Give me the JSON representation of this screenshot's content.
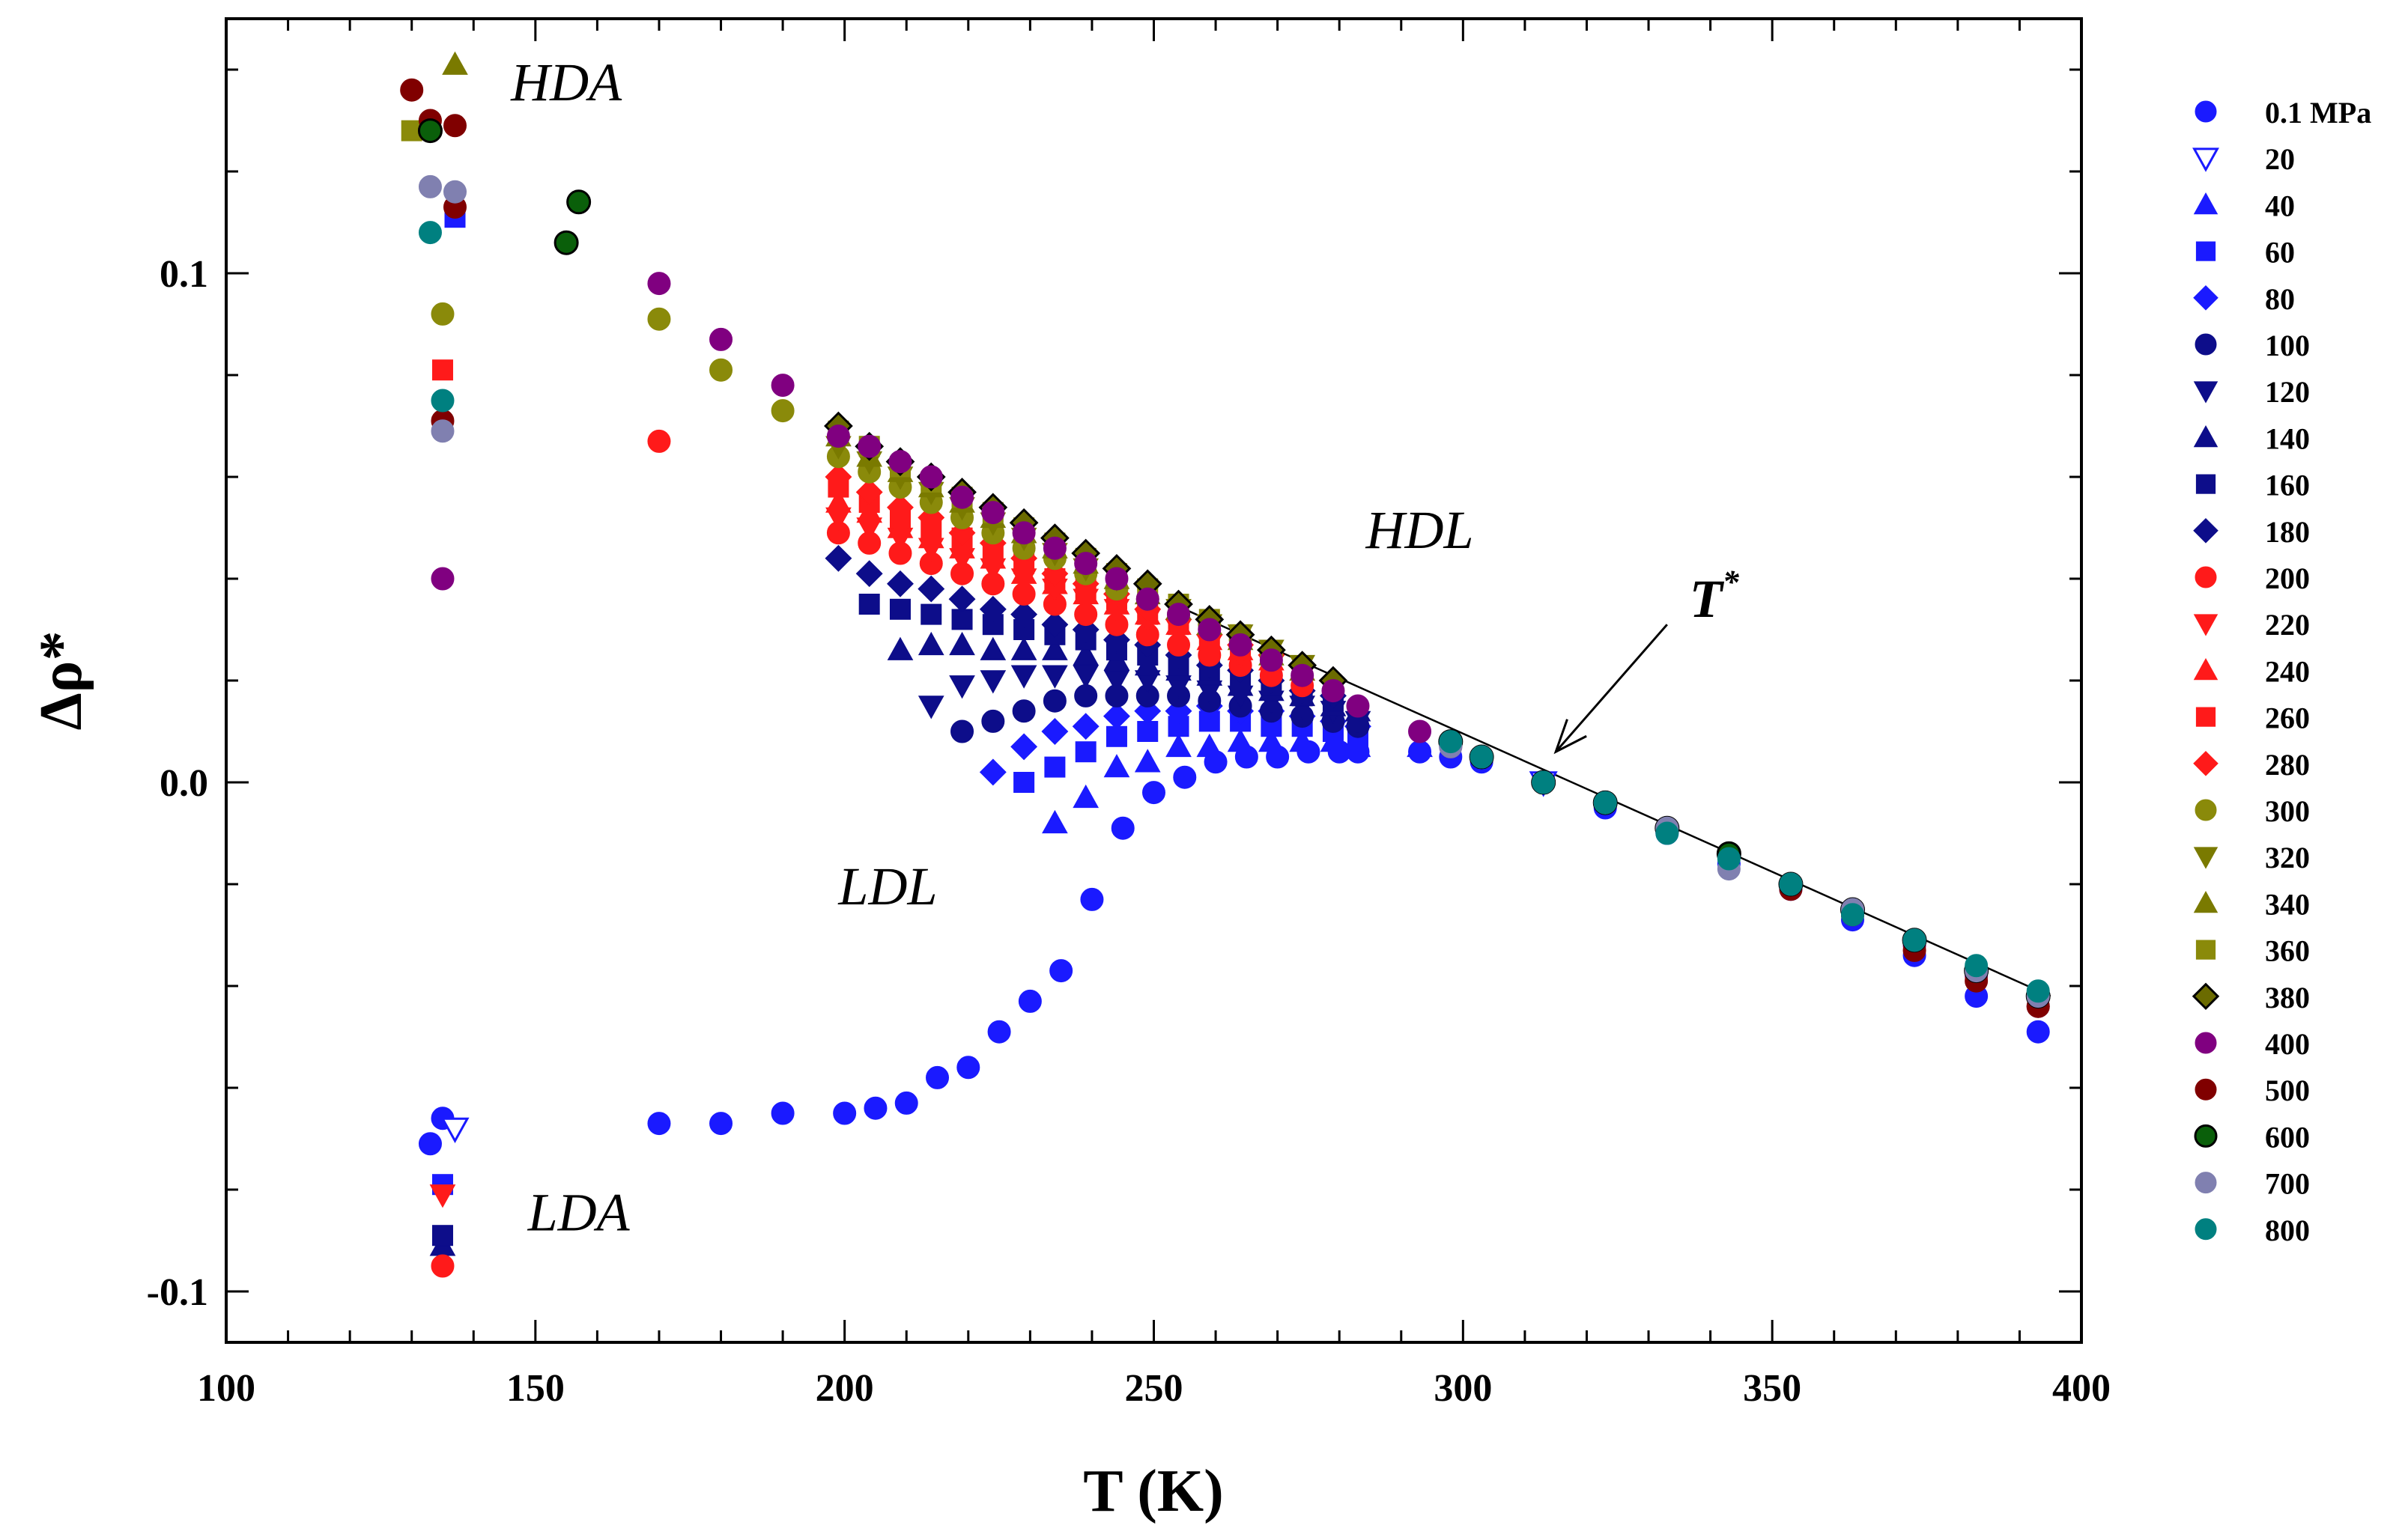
{
  "chart_data": {
    "type": "scatter",
    "title": "",
    "xlabel": "T (K)",
    "ylabel": "Δρ*",
    "xlim": [
      100,
      400
    ],
    "ylim": [
      -0.11,
      0.15
    ],
    "xticks": [
      100,
      150,
      200,
      250,
      300,
      350,
      400
    ],
    "xtick_labels": [
      "100",
      "150",
      "200",
      "250",
      "300",
      "350",
      "400"
    ],
    "yticks": [
      -0.1,
      0.0,
      0.1
    ],
    "ytick_labels": [
      "-0.1",
      "0.0",
      "0.1"
    ],
    "legend_position": "right",
    "region_labels": [
      {
        "text": "HDA",
        "x": 155,
        "y": 0.134
      },
      {
        "text": "HDL",
        "x": 293,
        "y": 0.046
      },
      {
        "text": "LDL",
        "x": 207,
        "y": -0.024
      },
      {
        "text": "LDA",
        "x": 157,
        "y": -0.088
      }
    ],
    "tstar_annotation": {
      "text": "T",
      "superscript": "*",
      "arrow_from": [
        333,
        0.031
      ],
      "arrow_to": [
        315,
        0.006
      ]
    },
    "reference_line": {
      "from": [
        255,
        0.034
      ],
      "to": [
        395,
        -0.042
      ]
    },
    "series": [
      {
        "name": "0.1 MPa",
        "marker": "circle",
        "color": "#1a1aff",
        "fill": "filled",
        "x": [
          133,
          135,
          170,
          180,
          190,
          200,
          205,
          210,
          215,
          220,
          225,
          230,
          235,
          240,
          245,
          250,
          255,
          260,
          265,
          270,
          275,
          280,
          283,
          293,
          298,
          303,
          313,
          323,
          333,
          343,
          353,
          363,
          373,
          383,
          393
        ],
        "y": [
          -0.071,
          -0.066,
          -0.067,
          -0.067,
          -0.065,
          -0.065,
          -0.064,
          -0.063,
          -0.058,
          -0.056,
          -0.049,
          -0.043,
          -0.037,
          -0.023,
          -0.009,
          -0.002,
          0.001,
          0.004,
          0.005,
          0.005,
          0.006,
          0.006,
          0.006,
          0.006,
          0.005,
          0.004,
          0,
          -0.005,
          -0.01,
          -0.016,
          -0.021,
          -0.027,
          -0.034,
          -0.042,
          -0.049
        ]
      },
      {
        "name": "20",
        "marker": "triangle-down",
        "color": "#1a1aff",
        "fill": "open",
        "x": [
          137,
          313
        ],
        "y": [
          -0.068,
          0
        ]
      },
      {
        "name": "40",
        "marker": "triangle-up",
        "color": "#1a1aff",
        "fill": "filled",
        "x": [
          234,
          239,
          244,
          249,
          254,
          259,
          264,
          269,
          274,
          279,
          283,
          293
        ],
        "y": [
          -0.008,
          -0.003,
          0.003,
          0.004,
          0.007,
          0.007,
          0.008,
          0.008,
          0.008,
          0.008,
          0.007,
          0.007
        ]
      },
      {
        "name": "60",
        "marker": "square",
        "color": "#1a1aff",
        "fill": "filled",
        "x": [
          135,
          137,
          229,
          234,
          239,
          244,
          249,
          254,
          259,
          264,
          269,
          274,
          279,
          283
        ],
        "y": [
          -0.079,
          0.111,
          0,
          0.003,
          0.006,
          0.009,
          0.01,
          0.011,
          0.012,
          0.012,
          0.011,
          0.011,
          0.01,
          0.009
        ]
      },
      {
        "name": "80",
        "marker": "diamond",
        "color": "#1a1aff",
        "fill": "filled",
        "x": [
          224,
          229,
          234,
          239,
          244,
          249,
          254,
          259,
          264,
          269,
          274,
          279,
          283
        ],
        "y": [
          0.002,
          0.007,
          0.01,
          0.011,
          0.013,
          0.014,
          0.014,
          0.015,
          0.014,
          0.014,
          0.013,
          0.012,
          0.011
        ]
      },
      {
        "name": "100",
        "marker": "circle",
        "color": "#0d0d8a",
        "fill": "filled",
        "x": [
          219,
          224,
          229,
          234,
          239,
          244,
          249,
          254,
          259,
          264,
          269,
          274,
          279,
          283
        ],
        "y": [
          0.01,
          0.012,
          0.014,
          0.016,
          0.017,
          0.017,
          0.017,
          0.017,
          0.016,
          0.015,
          0.014,
          0.013,
          0.012,
          0.011
        ]
      },
      {
        "name": "120",
        "marker": "triangle-down",
        "color": "#0d0d8a",
        "fill": "filled",
        "x": [
          214,
          219,
          224,
          229,
          234,
          239,
          244,
          249,
          254,
          259,
          264,
          269,
          274,
          279,
          283
        ],
        "y": [
          0.015,
          0.019,
          0.02,
          0.021,
          0.021,
          0.021,
          0.02,
          0.02,
          0.019,
          0.018,
          0.017,
          0.016,
          0.015,
          0.014,
          0.012
        ]
      },
      {
        "name": "140",
        "marker": "triangle-up",
        "color": "#0d0d8a",
        "fill": "filled",
        "x": [
          135,
          209,
          214,
          219,
          224,
          229,
          234,
          239,
          244,
          249,
          254,
          259,
          264,
          269,
          274,
          279,
          283
        ],
        "y": [
          -0.091,
          0.026,
          0.027,
          0.027,
          0.026,
          0.026,
          0.026,
          0.025,
          0.024,
          0.023,
          0.022,
          0.021,
          0.019,
          0.018,
          0.017,
          0.015,
          0.014
        ]
      },
      {
        "name": "160",
        "marker": "square",
        "color": "#0d0d8a",
        "fill": "filled",
        "x": [
          135,
          204,
          209,
          214,
          219,
          224,
          229,
          234,
          239,
          244,
          249,
          254,
          259,
          264,
          269,
          274,
          279
        ],
        "y": [
          -0.089,
          0.035,
          0.034,
          0.033,
          0.032,
          0.031,
          0.03,
          0.029,
          0.028,
          0.026,
          0.025,
          0.023,
          0.022,
          0.02,
          0.019,
          0.017,
          0.016
        ]
      },
      {
        "name": "180",
        "marker": "diamond",
        "color": "#0d0d8a",
        "fill": "filled",
        "x": [
          199,
          204,
          209,
          214,
          219,
          224,
          229,
          234,
          239,
          244,
          249,
          254,
          259,
          264,
          269,
          274,
          279
        ],
        "y": [
          0.044,
          0.041,
          0.039,
          0.038,
          0.036,
          0.034,
          0.033,
          0.031,
          0.03,
          0.028,
          0.027,
          0.025,
          0.023,
          0.022,
          0.02,
          0.018,
          0.017
        ]
      },
      {
        "name": "200",
        "marker": "circle",
        "color": "#ff1a1a",
        "fill": "filled",
        "x": [
          135,
          170,
          199,
          204,
          209,
          214,
          219,
          224,
          229,
          234,
          239,
          244,
          249,
          254,
          259,
          264,
          269,
          274
        ],
        "y": [
          -0.095,
          0.067,
          0.049,
          0.047,
          0.045,
          0.043,
          0.041,
          0.039,
          0.037,
          0.035,
          0.033,
          0.031,
          0.029,
          0.027,
          0.025,
          0.023,
          0.021,
          0.019
        ]
      },
      {
        "name": "220",
        "marker": "triangle-down",
        "color": "#ff1a1a",
        "fill": "filled",
        "x": [
          135,
          199,
          204,
          209,
          214,
          219,
          224,
          229,
          234,
          239,
          244,
          249,
          254,
          259,
          264,
          269,
          274
        ],
        "y": [
          -0.081,
          0.052,
          0.05,
          0.048,
          0.046,
          0.044,
          0.042,
          0.04,
          0.038,
          0.036,
          0.034,
          0.032,
          0.03,
          0.027,
          0.025,
          0.023,
          0.021
        ]
      },
      {
        "name": "240",
        "marker": "triangle-up",
        "color": "#ff1a1a",
        "fill": "filled",
        "x": [
          199,
          204,
          209,
          214,
          219,
          224,
          229,
          234,
          239,
          244,
          249,
          254,
          259,
          264,
          269,
          274
        ],
        "y": [
          0.055,
          0.053,
          0.05,
          0.048,
          0.046,
          0.044,
          0.041,
          0.039,
          0.037,
          0.035,
          0.033,
          0.031,
          0.028,
          0.026,
          0.024,
          0.022
        ]
      },
      {
        "name": "260",
        "marker": "square",
        "color": "#ff1a1a",
        "fill": "filled",
        "x": [
          135,
          199,
          204,
          209,
          214,
          219,
          224,
          229,
          234,
          239,
          244,
          249,
          254,
          259,
          264,
          269
        ],
        "y": [
          0.081,
          0.058,
          0.055,
          0.052,
          0.05,
          0.048,
          0.045,
          0.043,
          0.04,
          0.038,
          0.036,
          0.033,
          0.031,
          0.029,
          0.026,
          0.024
        ]
      },
      {
        "name": "280",
        "marker": "diamond",
        "color": "#ff1a1a",
        "fill": "filled",
        "x": [
          199,
          204,
          209,
          214,
          219,
          224,
          229,
          234,
          239,
          244,
          249,
          254,
          259,
          264,
          269
        ],
        "y": [
          0.06,
          0.057,
          0.054,
          0.052,
          0.049,
          0.047,
          0.044,
          0.041,
          0.039,
          0.037,
          0.034,
          0.032,
          0.029,
          0.027,
          0.025
        ]
      },
      {
        "name": "300",
        "marker": "circle",
        "color": "#8a8a0a",
        "fill": "filled",
        "x": [
          135,
          170,
          180,
          190,
          199,
          204,
          209,
          214,
          219,
          224,
          229,
          234,
          239,
          244,
          249,
          254,
          259,
          264,
          269
        ],
        "y": [
          0.092,
          0.091,
          0.081,
          0.073,
          0.064,
          0.061,
          0.058,
          0.055,
          0.052,
          0.049,
          0.046,
          0.044,
          0.041,
          0.038,
          0.036,
          0.033,
          0.031,
          0.028,
          0.025
        ]
      },
      {
        "name": "320",
        "marker": "triangle-down",
        "color": "#7a7a00",
        "fill": "filled",
        "x": [
          199,
          204,
          209,
          214,
          219,
          224,
          229,
          234,
          239,
          244,
          249,
          254,
          259,
          264,
          269,
          274
        ],
        "y": [
          0.066,
          0.063,
          0.06,
          0.057,
          0.054,
          0.051,
          0.048,
          0.045,
          0.042,
          0.04,
          0.037,
          0.034,
          0.031,
          0.029,
          0.026,
          0.023
        ]
      },
      {
        "name": "340",
        "marker": "triangle-up",
        "color": "#7a7a00",
        "fill": "filled",
        "x": [
          137,
          199,
          204,
          209,
          214,
          219,
          224,
          229,
          234,
          239,
          244,
          249,
          254,
          259,
          264,
          269,
          274
        ],
        "y": [
          0.141,
          0.068,
          0.064,
          0.061,
          0.058,
          0.055,
          0.052,
          0.049,
          0.046,
          0.043,
          0.04,
          0.037,
          0.034,
          0.031,
          0.028,
          0.025,
          0.022
        ]
      },
      {
        "name": "360",
        "marker": "square",
        "color": "#8a8a0a",
        "fill": "filled",
        "x": [
          130,
          199,
          204,
          209,
          214,
          219,
          224,
          229,
          234,
          239,
          244,
          249,
          254,
          259,
          264
        ],
        "y": [
          0.128,
          0.069,
          0.066,
          0.062,
          0.059,
          0.056,
          0.053,
          0.05,
          0.047,
          0.044,
          0.041,
          0.038,
          0.035,
          0.032,
          0.029
        ]
      },
      {
        "name": "380",
        "marker": "diamond",
        "color": "#6b6b00",
        "fill": "filled-outlined",
        "x": [
          199,
          204,
          209,
          214,
          219,
          224,
          229,
          234,
          239,
          244,
          249,
          254,
          259,
          264,
          269,
          274,
          279
        ],
        "y": [
          0.07,
          0.066,
          0.063,
          0.06,
          0.057,
          0.054,
          0.051,
          0.048,
          0.045,
          0.042,
          0.039,
          0.035,
          0.032,
          0.029,
          0.026,
          0.023,
          0.02
        ]
      },
      {
        "name": "400",
        "marker": "circle",
        "color": "#800080",
        "fill": "filled",
        "x": [
          135,
          170,
          180,
          190,
          199,
          204,
          209,
          214,
          219,
          224,
          229,
          234,
          239,
          244,
          249,
          254,
          259,
          264,
          269,
          274,
          279,
          283,
          293,
          298,
          303,
          313,
          323,
          333,
          343,
          353,
          363,
          373,
          383,
          393
        ],
        "y": [
          0.04,
          0.098,
          0.087,
          0.078,
          0.068,
          0.066,
          0.063,
          0.06,
          0.056,
          0.053,
          0.049,
          0.046,
          0.043,
          0.04,
          0.036,
          0.033,
          0.03,
          0.027,
          0.024,
          0.021,
          0.018,
          0.015,
          0.01,
          0.007,
          0.005,
          0,
          -0.004,
          -0.009,
          -0.014,
          -0.02,
          -0.026,
          -0.032,
          -0.038,
          -0.044
        ]
      },
      {
        "name": "500",
        "marker": "circle",
        "color": "#800000",
        "fill": "filled",
        "x": [
          130,
          133,
          135,
          137,
          137,
          313,
          323,
          333,
          343,
          353,
          363,
          373,
          383,
          393
        ],
        "y": [
          0.136,
          0.13,
          0.071,
          0.129,
          0.113,
          0,
          -0.004,
          -0.009,
          -0.014,
          -0.021,
          -0.026,
          -0.033,
          -0.039,
          -0.044
        ]
      },
      {
        "name": "600",
        "marker": "circle",
        "color": "#0a5f0a",
        "fill": "filled-outlined",
        "x": [
          133,
          155,
          157,
          298,
          303,
          313,
          323,
          333,
          343,
          353,
          363,
          373,
          383,
          393
        ],
        "y": [
          0.128,
          0.106,
          0.114,
          0.008,
          0.005,
          0,
          -0.004,
          -0.009,
          -0.014,
          -0.02,
          -0.025,
          -0.031,
          -0.037,
          -0.042
        ]
      },
      {
        "name": "700",
        "marker": "circle",
        "color": "#8080b0",
        "fill": "filled",
        "x": [
          133,
          135,
          137,
          298,
          303,
          313,
          323,
          333,
          343,
          353,
          363,
          373,
          383,
          393
        ],
        "y": [
          0.117,
          0.069,
          0.116,
          0.007,
          0.005,
          0,
          -0.004,
          -0.009,
          -0.017,
          -0.02,
          -0.025,
          -0.031,
          -0.037,
          -0.042
        ]
      },
      {
        "name": "800",
        "marker": "circle",
        "color": "#008080",
        "fill": "filled",
        "x": [
          133,
          135,
          298,
          303,
          313,
          323,
          333,
          343,
          353,
          363,
          373,
          383,
          393
        ],
        "y": [
          0.108,
          0.075,
          0.008,
          0.005,
          0,
          -0.004,
          -0.01,
          -0.015,
          -0.02,
          -0.026,
          -0.031,
          -0.036,
          -0.041
        ]
      }
    ]
  }
}
